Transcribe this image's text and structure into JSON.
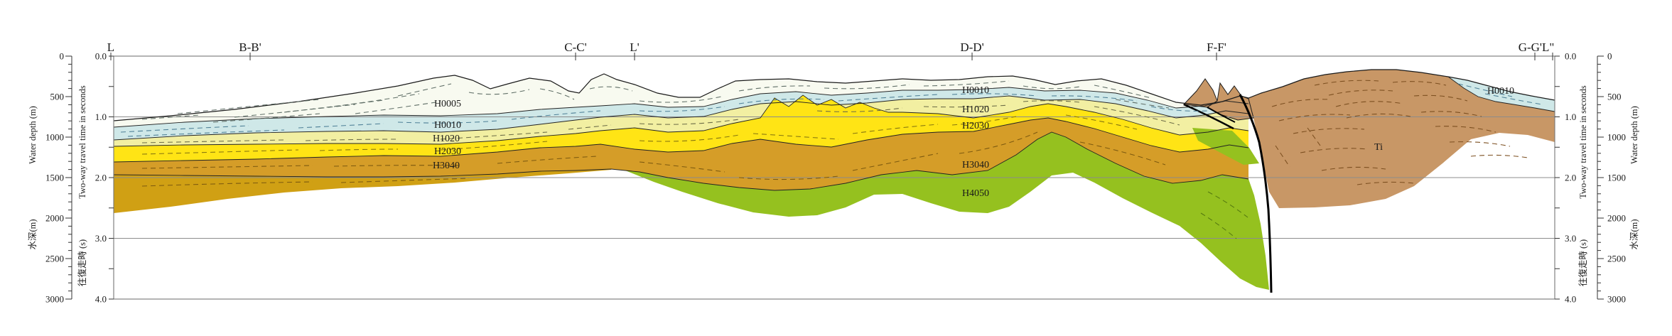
{
  "top_labels": [
    {
      "text": "L"
    },
    {
      "text": "B-B'"
    },
    {
      "text": "C-C'"
    },
    {
      "text": "L'"
    },
    {
      "text": "D-D'"
    },
    {
      "text": "F-F'"
    },
    {
      "text": "G-G'L\""
    }
  ],
  "axes": {
    "twt": {
      "title_jp": "往復走時 (s)",
      "title_en": "Two-way travel time in seconds",
      "ticks": [
        "0.0",
        "1.0",
        "2.0",
        "3.0",
        "4.0"
      ],
      "range_s": [
        0,
        4
      ]
    },
    "depth": {
      "title_jp": "水深(m)",
      "title_en": "Water depth (m)",
      "ticks": [
        "0",
        "500",
        "1000",
        "1500",
        "2000",
        "2500",
        "3000"
      ],
      "range_m": [
        0,
        3000
      ]
    }
  },
  "unit_labels": [
    {
      "text": "H0005"
    },
    {
      "text": "H0010"
    },
    {
      "text": "H1020"
    },
    {
      "text": "H2030"
    },
    {
      "text": "H3040"
    },
    {
      "text": "H0010"
    },
    {
      "text": "H1020"
    },
    {
      "text": "H2030"
    },
    {
      "text": "H3040"
    },
    {
      "text": "H4050"
    },
    {
      "text": "H0010"
    },
    {
      "text": "Ti"
    }
  ],
  "colors": {
    "unit_h0005_white": "#f8faf0",
    "unit_h0010_blue": "#cfe8e8",
    "unit_h1020_pale_yellow": "#f2efa2",
    "unit_h2030_yellow": "#ffe415",
    "unit_h3040_ochre": "#d59d28",
    "unit_deep_gold": "#d0a014",
    "unit_h4050_green": "#95c11f",
    "unit_ti_brown": "#c89766",
    "grid": "#8c8c8c",
    "frame": "#777777",
    "horizon_line": "#222222",
    "fault": "#000000"
  }
}
